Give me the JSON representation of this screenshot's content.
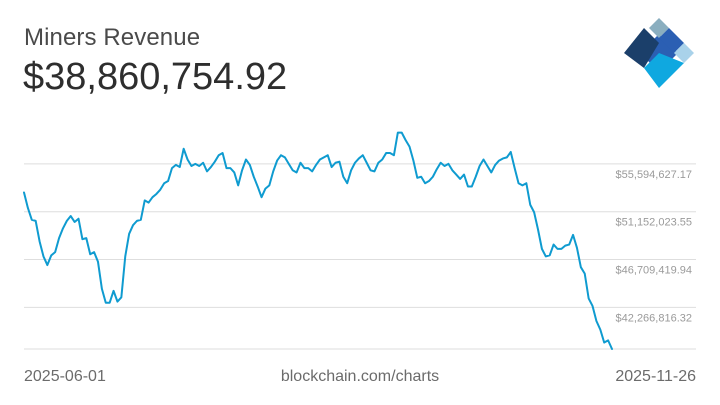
{
  "header": {
    "title": "Miners Revenue",
    "current_value": "$38,860,754.92"
  },
  "footer": {
    "start_date": "2025-06-01",
    "source": "blockchain.com/charts",
    "end_date": "2025-11-26"
  },
  "logo": {
    "icon": "blockchain-logo-icon",
    "colors": [
      "#1b3f6a",
      "#2b5fb3",
      "#0fa8e0",
      "#8aaebf",
      "#a9d2ea"
    ]
  },
  "colors": {
    "line": "#0f9bd0",
    "grid": "#dedede",
    "tick_label": "#9a9a9a"
  },
  "chart_data": {
    "type": "line",
    "title": "Miners Revenue",
    "x_start": "2025-06-01",
    "x_end": "2025-11-26",
    "ylim": [
      38400000,
      60600000
    ],
    "y_ticks": [
      {
        "value": 55594627.17,
        "label": "$55,594,627.17"
      },
      {
        "value": 51152023.55,
        "label": "$51,152,023.55"
      },
      {
        "value": 46709419.94,
        "label": "$46,709,419.94"
      },
      {
        "value": 42266816.32,
        "label": "$42,266,816.32"
      }
    ],
    "grid": true,
    "series": [
      {
        "values": [
          52940000,
          51500000,
          50400000,
          50300000,
          48400000,
          47000000,
          46200000,
          47100000,
          47400000,
          48700000,
          49600000,
          50300000,
          50750000,
          50200000,
          50500000,
          48600000,
          48700000,
          47200000,
          47400000,
          46500000,
          44000000,
          42700000,
          42700000,
          43800000,
          42800000,
          43200000,
          47000000,
          49100000,
          49900000,
          50300000,
          50400000,
          52200000,
          52000000,
          52500000,
          52800000,
          53200000,
          53800000,
          54000000,
          55200000,
          55500000,
          55300000,
          57000000,
          56000000,
          55400000,
          55600000,
          55400000,
          55700000,
          54900000,
          55300000,
          55800000,
          56400000,
          56600000,
          55200000,
          55200000,
          54800000,
          53600000,
          55000000,
          56000000,
          55500000,
          54400000,
          53500000,
          52500000,
          53300000,
          53600000,
          54900000,
          55900000,
          56400000,
          56200000,
          55600000,
          55000000,
          54800000,
          55700000,
          55200000,
          55200000,
          54900000,
          55500000,
          56000000,
          56200000,
          56400000,
          55300000,
          55700000,
          55800000,
          54400000,
          53800000,
          55000000,
          55700000,
          56100000,
          56400000,
          55700000,
          55000000,
          54900000,
          55700000,
          56000000,
          56600000,
          56600000,
          56400000,
          58500000,
          58500000,
          57800000,
          57200000,
          55900000,
          54300000,
          54400000,
          53800000,
          54000000,
          54400000,
          55100000,
          55700000,
          55400000,
          55600000,
          55000000,
          54600000,
          54200000,
          54600000,
          53500000,
          53500000,
          54400000,
          55400000,
          56000000,
          55400000,
          54800000,
          55500000,
          55900000,
          56100000,
          56200000,
          56700000,
          55200000,
          53800000,
          53600000,
          53800000,
          51800000,
          51100000,
          49500000,
          47700000,
          47000000,
          47100000,
          48100000,
          47700000,
          47700000,
          48000000,
          48100000,
          49000000,
          47800000,
          46000000,
          45400000,
          43100000,
          42400000,
          41000000,
          40200000,
          39000000,
          39200000,
          38400000
        ]
      }
    ]
  }
}
